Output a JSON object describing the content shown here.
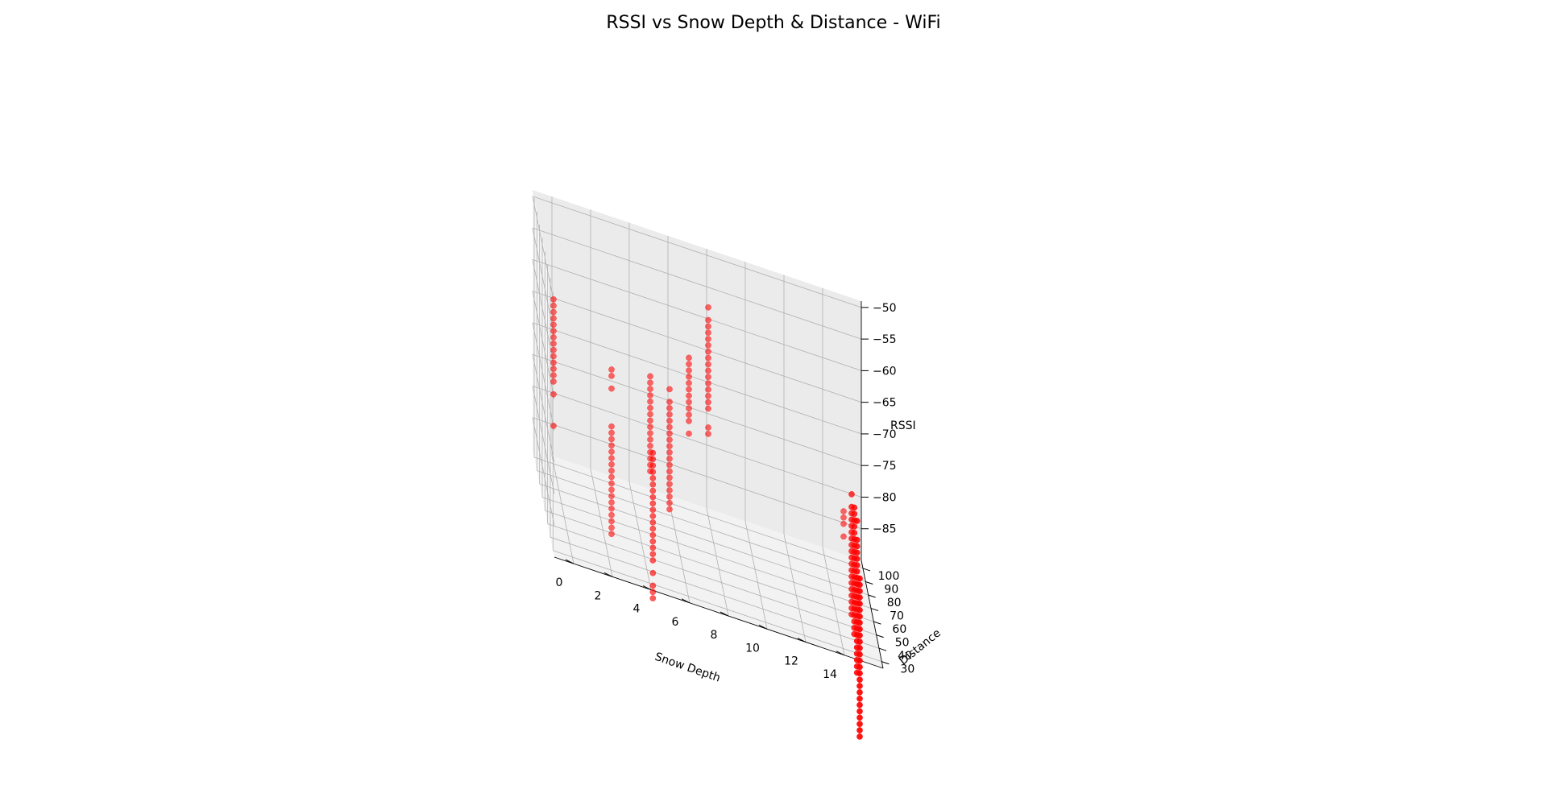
{
  "chart_data": {
    "type": "scatter",
    "title": "RSSI vs Snow Depth & Distance - WiFi",
    "xlabel": "Snow Depth",
    "ylabel": "Distance",
    "zlabel": "RSSI",
    "xlim": [
      -1,
      16
    ],
    "ylim": [
      25,
      106
    ],
    "zlim": [
      -90,
      -49
    ],
    "x_ticks": [
      0,
      2,
      4,
      6,
      8,
      10,
      12,
      14
    ],
    "y_ticks": [
      30,
      40,
      50,
      60,
      70,
      80,
      90,
      100
    ],
    "z_ticks": [
      -50,
      -55,
      -60,
      -65,
      -70,
      -75,
      -80,
      -85
    ],
    "grid": true,
    "marker_color": "#ff0000",
    "series": [
      {
        "points": [
          {
            "x": 0,
            "y": 100,
            "rssi": [
              -64,
              -65,
              -66,
              -67,
              -68,
              -69,
              -70,
              -71,
              -72,
              -73,
              -74,
              -75,
              -76,
              -77,
              -79
            ]
          },
          {
            "x": 0,
            "y": 100,
            "rssi": [
              -84
            ]
          },
          {
            "x": 3,
            "y": 100,
            "rssi": [
              -72,
              -73,
              -75
            ]
          },
          {
            "x": 3,
            "y": 100,
            "rssi": [
              -81,
              -82,
              -83,
              -84,
              -85,
              -86,
              -87,
              -88,
              -89,
              -90,
              -91,
              -92,
              -93,
              -94,
              -95,
              -96,
              -97,
              -98
            ]
          },
          {
            "x": 5,
            "y": 100,
            "rssi": [
              -71,
              -72,
              -73,
              -74,
              -75,
              -76,
              -77,
              -78,
              -79,
              -80,
              -81,
              -82,
              -83,
              -84,
              -85,
              -86
            ]
          },
          {
            "x": 5,
            "y": 90,
            "rssi": [
              -81,
              -82,
              -83,
              -84,
              -85,
              -86,
              -87,
              -88,
              -89,
              -90,
              -91,
              -92,
              -93,
              -94,
              -95,
              -96,
              -97,
              -98,
              -100,
              -102,
              -103,
              -104
            ]
          },
          {
            "x": 6,
            "y": 100,
            "rssi": [
              -72,
              -74,
              -75,
              -76,
              -77,
              -78,
              -79,
              -80,
              -81,
              -82,
              -83,
              -84,
              -85,
              -86,
              -87,
              -88,
              -89,
              -90,
              -91
            ]
          },
          {
            "x": 7,
            "y": 100,
            "rssi": [
              -66,
              -67,
              -68,
              -69,
              -70,
              -71,
              -72,
              -73,
              -74,
              -75,
              -76,
              -78
            ]
          },
          {
            "x": 8,
            "y": 100,
            "rssi": [
              -57,
              -59,
              -60,
              -61,
              -62,
              -63,
              -64,
              -65,
              -66,
              -67,
              -68,
              -69,
              -70,
              -71,
              -72,
              -73,
              -76,
              -77
            ]
          },
          {
            "x": 15,
            "y": 40,
            "rssi": [
              -80,
              -81,
              -82,
              -83,
              -84,
              -85,
              -86,
              -87,
              -88,
              -89,
              -90,
              -91,
              -92,
              -93,
              -94,
              -95,
              -96,
              -97,
              -98,
              -99,
              -100,
              -101,
              -102,
              -103,
              -104,
              -105
            ]
          },
          {
            "x": 15,
            "y": 50,
            "rssi": [
              -73,
              -76,
              -77,
              -78,
              -79,
              -80,
              -81,
              -82,
              -83,
              -84,
              -85,
              -86,
              -87,
              -88,
              -89,
              -90,
              -91,
              -92,
              -93,
              -94,
              -95,
              -96,
              -97
            ]
          },
          {
            "x": 15,
            "y": 60,
            "rssi": [
              -73,
              -74,
              -75,
              -76,
              -77,
              -78,
              -79,
              -80,
              -81,
              -82,
              -83,
              -84,
              -85,
              -86,
              -87,
              -88,
              -89,
              -90,
              -91,
              -92,
              -93
            ]
          },
          {
            "x": 15,
            "y": 70,
            "rssi": [
              -73,
              -75,
              -76,
              -77,
              -78,
              -79,
              -80,
              -81,
              -82,
              -83,
              -84,
              -85,
              -86,
              -87,
              -88,
              -89,
              -90,
              -91,
              -92
            ]
          },
          {
            "x": 15,
            "y": 100,
            "rssi": [
              -82,
              -83,
              -84,
              -86
            ]
          }
        ]
      }
    ]
  }
}
